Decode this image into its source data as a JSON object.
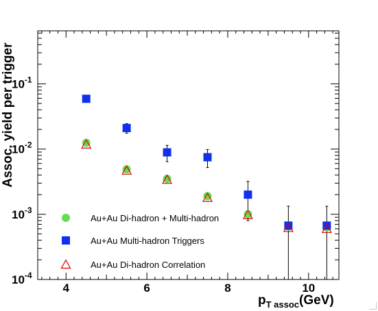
{
  "chart_data": {
    "type": "scatter",
    "title": "",
    "ylabel": "Assoc. yield per trigger",
    "xlabel_main": "p",
    "xlabel_sub": "T assoc",
    "xlabel_unit": "(GeV)",
    "xlim": [
      3.3,
      10.75
    ],
    "ylim": [
      0.0001,
      0.65
    ],
    "yscale": "log",
    "x_ticks": [
      {
        "value": 4,
        "label": "4"
      },
      {
        "value": 6,
        "label": "6"
      },
      {
        "value": 8,
        "label": "8"
      },
      {
        "value": 10,
        "label": "10"
      }
    ],
    "y_ticks": [
      {
        "value": 0.0001,
        "base": "10",
        "exp": "-4"
      },
      {
        "value": 0.001,
        "base": "10",
        "exp": "-3"
      },
      {
        "value": 0.01,
        "base": "10",
        "exp": "-2"
      },
      {
        "value": 0.1,
        "base": "10",
        "exp": "-1"
      }
    ],
    "grid": false,
    "legend_position": "bottom-left",
    "series": [
      {
        "name": "Au+Au Di-hadron + Multi-hadron",
        "marker": "circle",
        "color": "#66dd55",
        "points": [
          {
            "x": 4.5,
            "y": 0.0125,
            "err": 0.001
          },
          {
            "x": 5.5,
            "y": 0.0049,
            "err": 0.0004
          },
          {
            "x": 6.5,
            "y": 0.0035,
            "err": 0.0003
          },
          {
            "x": 7.5,
            "y": 0.0019,
            "err": 0.0002
          },
          {
            "x": 8.5,
            "y": 0.001,
            "err": 0.0001
          },
          {
            "x": 9.5,
            "y": 0.00065,
            "err": 5e-05
          },
          {
            "x": 10.45,
            "y": 0.00063,
            "err": 5e-05
          }
        ]
      },
      {
        "name": "Au+Au Multi-hadron Triggers",
        "marker": "square",
        "color": "#1030ee",
        "points": [
          {
            "x": 4.5,
            "y": 0.059,
            "err": 0.006
          },
          {
            "x": 5.5,
            "y": 0.021,
            "err": 0.0035
          },
          {
            "x": 6.5,
            "y": 0.0089,
            "err": 0.0025
          },
          {
            "x": 7.5,
            "y": 0.0075,
            "err": 0.0023
          },
          {
            "x": 8.5,
            "y": 0.002,
            "err": 0.0012
          },
          {
            "x": 9.5,
            "y": 0.00067,
            "err": 0.00066
          },
          {
            "x": 10.45,
            "y": 0.00067,
            "err": 0.00066
          }
        ]
      },
      {
        "name": "Au+Au Di-hadron Correlation",
        "marker": "triangle",
        "color": "#dd0000",
        "points": [
          {
            "x": 4.5,
            "y": 0.0118,
            "err": 0.0005
          },
          {
            "x": 5.5,
            "y": 0.0047,
            "err": 0.0002
          },
          {
            "x": 6.5,
            "y": 0.0034,
            "err": 0.0002
          },
          {
            "x": 7.5,
            "y": 0.0018,
            "err": 0.0001
          },
          {
            "x": 8.5,
            "y": 0.00098,
            "err": 5e-05
          },
          {
            "x": 9.5,
            "y": 0.00062,
            "err": 4e-05
          },
          {
            "x": 10.45,
            "y": 0.0006,
            "err": 4e-05
          }
        ]
      }
    ]
  }
}
